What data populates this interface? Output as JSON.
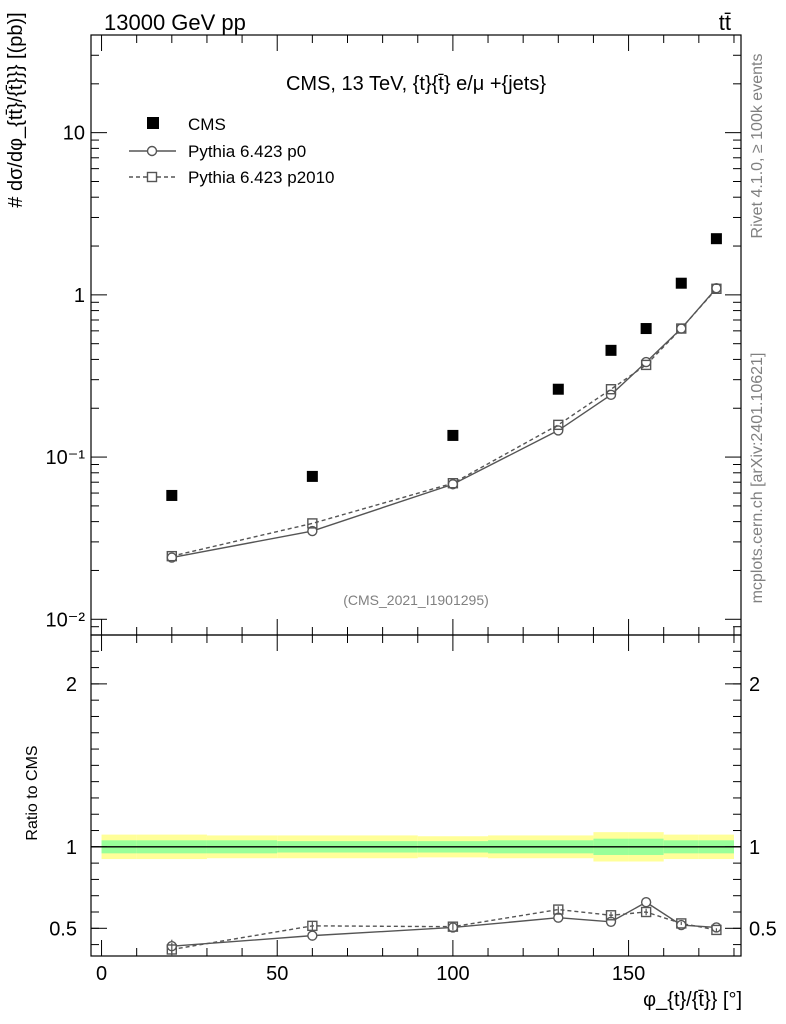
{
  "header": {
    "left": "13000 GeV pp",
    "right": "tt̄"
  },
  "side_labels": {
    "top": "Rivet 4.1.0, ≥ 100k events",
    "bottom": "mcplots.cern.ch [arXiv:2401.10621]"
  },
  "watermark": "(CMS_2021_I1901295)",
  "colors": {
    "band_outer": "#ffff99",
    "band_inner": "#99ff99",
    "mc": "#555555",
    "data": "#000000"
  },
  "chart_data": [
    {
      "type": "scatter",
      "title": "CMS, 13 TeV, {t}{t̄} e/μ +{jets}",
      "ylabel": "# dσ/dφ_{tt̄}/{t̄}}} [(pb)]",
      "yscale": "log",
      "ylim": [
        0.008,
        40
      ],
      "xlim": [
        -3,
        182
      ],
      "y_tick_labels": [
        "10⁻²",
        "10⁻¹",
        "1",
        "10"
      ],
      "legend": {
        "position": "top-left",
        "entries": [
          "CMS",
          "Pythia 6.423 p0",
          "Pythia 6.423 p2010"
        ]
      },
      "series": [
        {
          "name": "CMS",
          "marker": "filled-square",
          "x": [
            20,
            60,
            100,
            130,
            145,
            155,
            165,
            175
          ],
          "values": [
            0.058,
            0.076,
            0.136,
            0.262,
            0.455,
            0.62,
            1.18,
            2.22
          ]
        },
        {
          "name": "Pythia 6.423 p0",
          "marker": "open-circle",
          "line": "solid",
          "x": [
            20,
            60,
            100,
            130,
            145,
            155,
            165,
            175
          ],
          "values": [
            0.024,
            0.035,
            0.068,
            0.146,
            0.242,
            0.385,
            0.62,
            1.1
          ]
        },
        {
          "name": "Pythia 6.423 p2010",
          "marker": "open-square",
          "line": "dashed",
          "x": [
            20,
            60,
            100,
            130,
            145,
            155,
            165,
            175
          ],
          "values": [
            0.0245,
            0.039,
            0.069,
            0.158,
            0.262,
            0.37,
            0.62,
            1.09
          ]
        }
      ]
    },
    {
      "type": "scatter",
      "ylabel": "Ratio to CMS",
      "xlabel": "φ_{t}/{t̄}} [°]",
      "xlim": [
        -3,
        182
      ],
      "ylim": [
        0.33,
        2.3
      ],
      "x_tick_labels": [
        "0",
        "50",
        "100",
        "150"
      ],
      "y_tick_labels": [
        "0.5",
        "1",
        "2"
      ],
      "band": {
        "x_edges": [
          0,
          10,
          30,
          50,
          70,
          90,
          110,
          140,
          150,
          160,
          170,
          180
        ],
        "outer": [
          0.075,
          0.075,
          0.07,
          0.07,
          0.07,
          0.065,
          0.07,
          0.09,
          0.09,
          0.075,
          0.075
        ],
        "inner": [
          0.04,
          0.04,
          0.04,
          0.035,
          0.035,
          0.035,
          0.04,
          0.05,
          0.05,
          0.04,
          0.04
        ]
      },
      "series": [
        {
          "name": "Pythia 6.423 p0",
          "marker": "open-circle",
          "line": "solid",
          "x": [
            20,
            60,
            100,
            130,
            145,
            155,
            165,
            175
          ],
          "values": [
            0.39,
            0.455,
            0.505,
            0.565,
            0.54,
            0.66,
            0.52,
            0.505
          ],
          "errors": [
            0.04,
            0.025,
            0.015,
            0.015,
            0.02,
            0.02,
            0.01,
            0.01
          ]
        },
        {
          "name": "Pythia 6.423 p2010",
          "marker": "open-square",
          "line": "dashed",
          "x": [
            20,
            60,
            100,
            130,
            145,
            155,
            165,
            175
          ],
          "values": [
            0.37,
            0.515,
            0.51,
            0.615,
            0.58,
            0.6,
            0.53,
            0.49
          ],
          "errors": [
            0.04,
            0.03,
            0.02,
            0.02,
            0.02,
            0.02,
            0.01,
            0.01
          ]
        }
      ]
    }
  ]
}
